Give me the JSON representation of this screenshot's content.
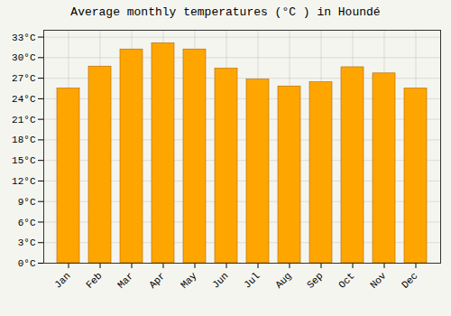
{
  "chart_data": {
    "type": "bar",
    "title": "Average monthly temperatures (°C ) in Houndé",
    "categories": [
      "Jan",
      "Feb",
      "Mar",
      "Apr",
      "May",
      "Jun",
      "Jul",
      "Aug",
      "Sep",
      "Oct",
      "Nov",
      "Dec"
    ],
    "values": [
      25.5,
      28.7,
      31.2,
      32.1,
      31.2,
      28.4,
      26.8,
      25.8,
      26.4,
      28.6,
      27.7,
      25.5
    ],
    "color": "#FFA500",
    "ylim": [
      0,
      34
    ],
    "yticks": [
      {
        "value": 0,
        "label": "0°C"
      },
      {
        "value": 3,
        "label": "3°C"
      },
      {
        "value": 6,
        "label": "6°C"
      },
      {
        "value": 9,
        "label": "9°C"
      },
      {
        "value": 12,
        "label": "12°C"
      },
      {
        "value": 15,
        "label": "15°C"
      },
      {
        "value": 18,
        "label": "18°C"
      },
      {
        "value": 21,
        "label": "21°C"
      },
      {
        "value": 24,
        "label": "24°C"
      },
      {
        "value": 27,
        "label": "27°C"
      },
      {
        "value": 30,
        "label": "30°C"
      },
      {
        "value": 33,
        "label": "33°C"
      }
    ],
    "grid": true
  }
}
